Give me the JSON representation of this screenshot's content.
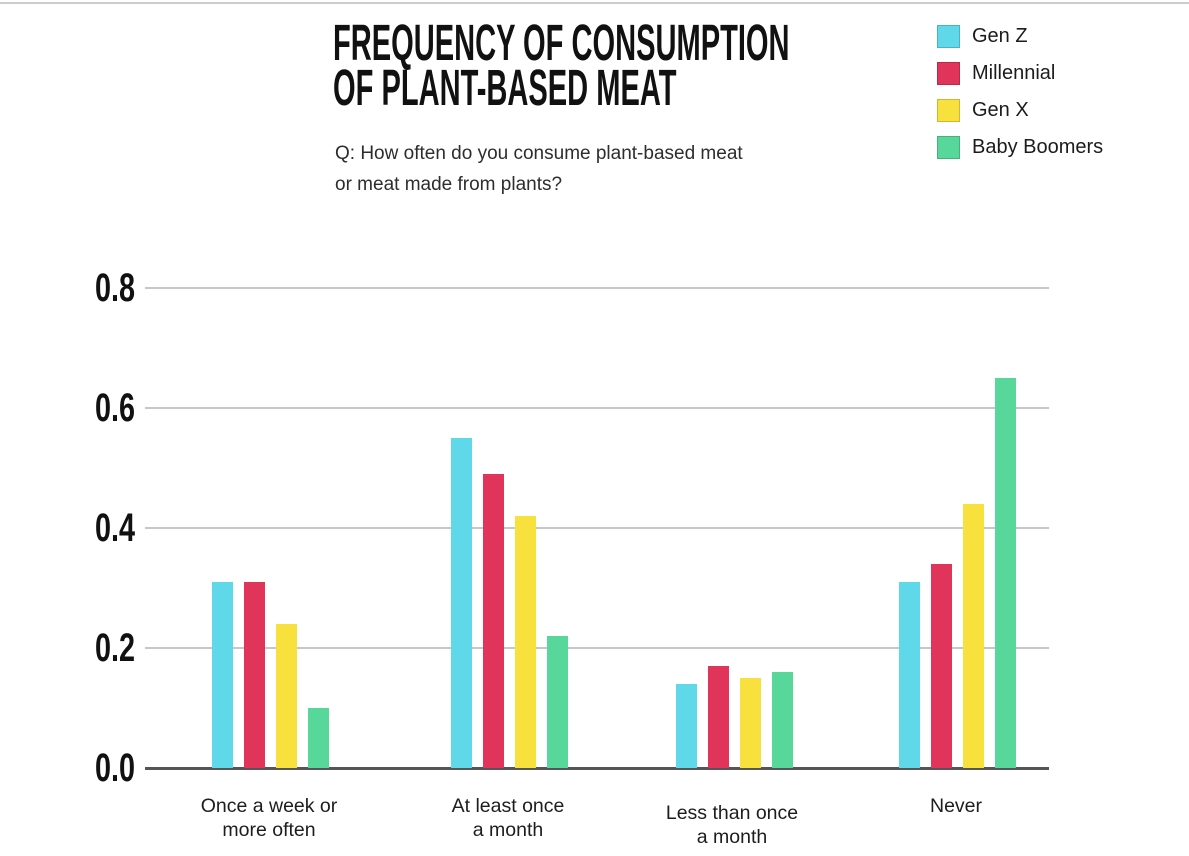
{
  "header": {
    "title_lines": [
      "FREQUENCY OF CONSUMPTION",
      "OF PLANT-BASED MEAT"
    ],
    "subtitle_lines": [
      "Q: How often do you consume plant-based meat",
      "or meat made from plants?"
    ]
  },
  "legend": {
    "items": [
      {
        "label": "Gen Z",
        "color": "#5FD8EA"
      },
      {
        "label": "Millennial",
        "color": "#E1345A"
      },
      {
        "label": "Gen X",
        "color": "#F9E13D"
      },
      {
        "label": "Baby Boomers",
        "color": "#58D79A"
      }
    ]
  },
  "chart_data": {
    "type": "bar",
    "title": "FREQUENCY OF CONSUMPTION OF PLANT-BASED MEAT",
    "subtitle": "Q: How often do you consume plant-based meat or meat made from plants?",
    "categories": [
      "Once a week or more often",
      "At least once a month",
      "Less than once a month",
      "Never"
    ],
    "category_label_lines": [
      [
        "Once a week or",
        "more often"
      ],
      [
        "At least once",
        "a month"
      ],
      [
        "Less than once",
        "a month"
      ],
      [
        "Never"
      ]
    ],
    "series": [
      {
        "name": "Gen Z",
        "color": "#5FD8EA",
        "values": [
          0.31,
          0.55,
          0.14,
          0.31
        ]
      },
      {
        "name": "Millennial",
        "color": "#E1345A",
        "values": [
          0.31,
          0.49,
          0.17,
          0.34
        ]
      },
      {
        "name": "Gen X",
        "color": "#F9E13D",
        "values": [
          0.24,
          0.42,
          0.15,
          0.44
        ]
      },
      {
        "name": "Baby Boomers",
        "color": "#58D79A",
        "values": [
          0.1,
          0.22,
          0.16,
          0.65
        ]
      }
    ],
    "y_ticks": [
      0.0,
      0.2,
      0.4,
      0.6,
      0.8
    ],
    "y_tick_labels": [
      "0.0",
      "0.2",
      "0.4",
      "0.6",
      "0.8"
    ],
    "ylim": [
      0,
      0.8
    ],
    "grid": "horizontal",
    "legend_position": "top-right"
  }
}
